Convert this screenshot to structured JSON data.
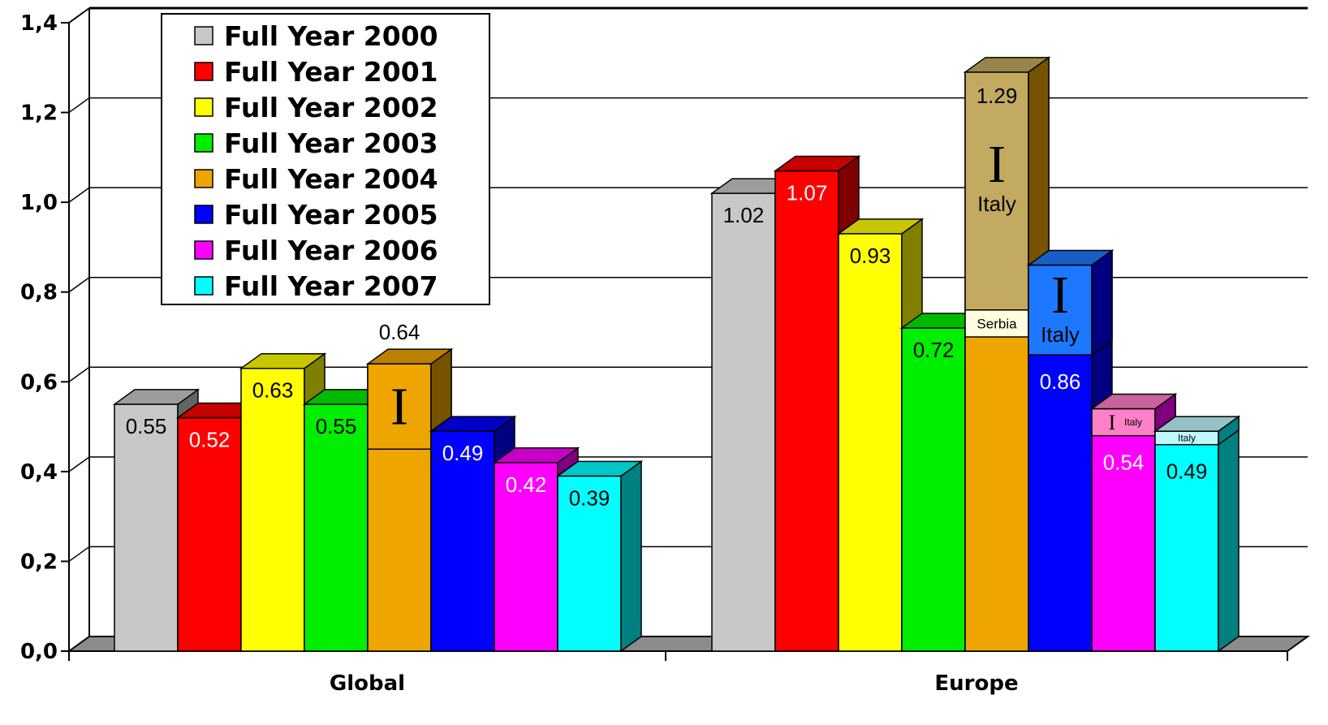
{
  "chart_data": {
    "type": "bar",
    "categories": [
      "Global",
      "Europe"
    ],
    "ylim": [
      0,
      1.4
    ],
    "y_ticks": [
      "0,0",
      "0,2",
      "0,4",
      "0,6",
      "0,8",
      "1,0",
      "1,2",
      "1,4"
    ],
    "legend_position": "top-left",
    "grid": true,
    "series": [
      {
        "name": "Full Year 2000",
        "color": "#C8C8C8",
        "values": [
          0.55,
          1.02
        ],
        "labels": [
          "0.55",
          "1.02"
        ]
      },
      {
        "name": "Full Year 2001",
        "color": "#FF0000",
        "values": [
          0.52,
          1.07
        ],
        "labels": [
          "0.52",
          "1.07"
        ]
      },
      {
        "name": "Full Year 2002",
        "color": "#FFFF00",
        "values": [
          0.63,
          0.93
        ],
        "labels": [
          "0.63",
          "0.93"
        ]
      },
      {
        "name": "Full Year 2003",
        "color": "#00EE00",
        "values": [
          0.55,
          0.72
        ],
        "labels": [
          "0.55",
          "0.72"
        ]
      },
      {
        "name": "Full Year 2004",
        "color": "#EEA500",
        "values": [
          0.64,
          1.29
        ],
        "labels": [
          "0.64",
          "1.29"
        ]
      },
      {
        "name": "Full Year 2005",
        "color": "#0000FF",
        "values": [
          0.49,
          0.86
        ],
        "labels": [
          "0.49",
          "0.86"
        ]
      },
      {
        "name": "Full Year 2006",
        "color": "#FF00FF",
        "values": [
          0.42,
          0.54
        ],
        "labels": [
          "0.42",
          "0.54"
        ]
      },
      {
        "name": "Full Year 2007",
        "color": "#00FFFF",
        "values": [
          0.39,
          0.49
        ],
        "labels": [
          "0.39",
          "0.49"
        ]
      }
    ],
    "segments": [
      {
        "series": 4,
        "group": 0,
        "from": 0.45,
        "to": 0.64,
        "fill": "#EEA500",
        "ibeam": true,
        "label": ""
      },
      {
        "series": 4,
        "group": 1,
        "from": 0.76,
        "to": 1.29,
        "fill": "#C2AA60",
        "ibeam": true,
        "label": "Italy"
      },
      {
        "series": 4,
        "group": 1,
        "from": 0.7,
        "to": 0.76,
        "fill": "#FFFFE0",
        "ibeam": false,
        "label": "Serbia"
      },
      {
        "series": 5,
        "group": 1,
        "from": 0.66,
        "to": 0.86,
        "fill": "#1E78FF",
        "ibeam": true,
        "label": "Italy"
      },
      {
        "series": 6,
        "group": 1,
        "from": 0.48,
        "to": 0.54,
        "fill": "#FF80C8",
        "ibeam": true,
        "label": "Italy"
      },
      {
        "series": 7,
        "group": 1,
        "from": 0.46,
        "to": 0.49,
        "fill": "#C0F8FF",
        "ibeam": false,
        "label": "Italy"
      }
    ]
  }
}
